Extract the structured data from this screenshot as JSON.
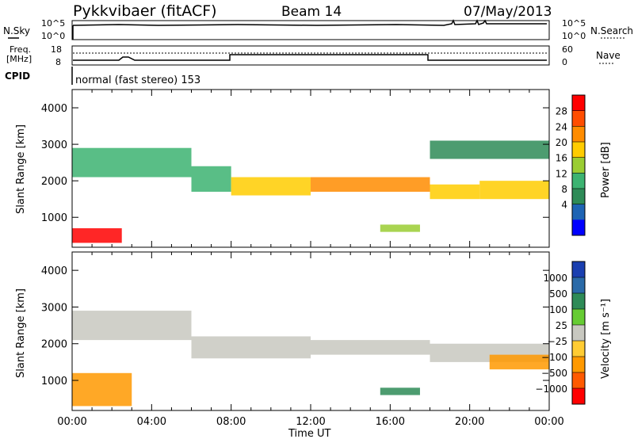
{
  "header": {
    "radar": "Pykkvibaer (fitACF)",
    "beam": "Beam 14",
    "date": "07/May/2013"
  },
  "strips": {
    "nsky_label": "N.Sky",
    "nsky_ticks": [
      "10^5",
      "10^0"
    ],
    "nsearch_label": "N.Search",
    "nsearch_ticks": [
      "10^5",
      "10^0"
    ],
    "freq_label_line1": "Freq.",
    "freq_label_line2": "[MHz]",
    "freq_ticks": [
      "18",
      "8"
    ],
    "nave_label": "Nave",
    "nave_ticks": [
      "60",
      "0"
    ],
    "cpid_label": "CPID",
    "cpid_text": "normal (fast stereo) 153"
  },
  "power_panel": {
    "ylabel": "Slant Range [km]",
    "yticks": [
      "4000",
      "3000",
      "2000",
      "1000"
    ],
    "colorbar_label": "Power [dB]",
    "colorbar_ticks": [
      "28",
      "24",
      "20",
      "16",
      "12",
      "8",
      "4"
    ],
    "colorbar_colors": [
      "#ff0000",
      "#ff4d00",
      "#ff8c00",
      "#ffcc00",
      "#9acd32",
      "#3cb371",
      "#2e8b57",
      "#1e64b4",
      "#0000ff"
    ]
  },
  "velocity_panel": {
    "ylabel": "Slant Range [km]",
    "yticks": [
      "4000",
      "3000",
      "2000",
      "1000"
    ],
    "colorbar_label": "Velocity [m s⁻¹]",
    "colorbar_ticks": [
      "1000",
      "500",
      "100",
      "25",
      "−25",
      "−100",
      "−500",
      "−1000"
    ],
    "colorbar_colors": [
      "#1a3fb0",
      "#2a6aa8",
      "#2e8b57",
      "#66cc33",
      "#c8c8c0",
      "#ffcc33",
      "#ff9900",
      "#ff5a00",
      "#ff0000"
    ]
  },
  "xaxis": {
    "label": "Time UT",
    "ticks": [
      "00:00",
      "04:00",
      "08:00",
      "12:00",
      "16:00",
      "20:00",
      "00:00"
    ]
  },
  "chart_data": {
    "type": "heatmap",
    "title": "Pykkvibaer (fitACF)",
    "subtitle": "Beam 14",
    "date": "07/May/2013",
    "xlabel": "Time UT",
    "ylabel": "Slant Range [km]",
    "x_range_hours": [
      0,
      24
    ],
    "y_range_km": [
      180,
      4500
    ],
    "frequency_MHz": {
      "y_range": [
        8,
        18
      ],
      "values": [
        [
          0,
          10
        ],
        [
          2.4,
          10.5
        ],
        [
          3.0,
          10
        ],
        [
          24,
          10
        ]
      ]
    },
    "nave": {
      "y_range": [
        0,
        60
      ],
      "values": [
        [
          0,
          20
        ],
        [
          7.8,
          20
        ],
        [
          7.8,
          35
        ],
        [
          18,
          35
        ],
        [
          18,
          20
        ],
        [
          24,
          20
        ]
      ]
    },
    "nsky": {
      "values": [
        [
          0,
          5
        ],
        [
          3,
          5
        ],
        [
          10,
          5
        ],
        [
          19,
          5
        ],
        [
          21,
          5
        ],
        [
          24,
          5
        ]
      ]
    },
    "power_dB": {
      "scale": [
        4,
        28
      ],
      "regions": [
        {
          "t0": 0.0,
          "t1": 6.0,
          "r0": 2100,
          "r1": 2900,
          "value": 14
        },
        {
          "t0": 6.0,
          "t1": 8.0,
          "r0": 1700,
          "r1": 2400,
          "value": 12
        },
        {
          "t0": 8.0,
          "t1": 12.0,
          "r0": 1600,
          "r1": 2100,
          "value": 18
        },
        {
          "t0": 12.0,
          "t1": 18.0,
          "r0": 1700,
          "r1": 2100,
          "value": 22
        },
        {
          "t0": 18.0,
          "t1": 20.5,
          "r0": 1500,
          "r1": 1900,
          "value": 20
        },
        {
          "t0": 20.5,
          "t1": 24.0,
          "r0": 1500,
          "r1": 2000,
          "value": 18
        },
        {
          "t0": 0.0,
          "t1": 2.5,
          "r0": 300,
          "r1": 700,
          "value": 28
        },
        {
          "t0": 15.5,
          "t1": 17.5,
          "r0": 600,
          "r1": 800,
          "value": 16
        },
        {
          "t0": 18.0,
          "t1": 24.0,
          "r0": 2600,
          "r1": 3100,
          "value": 10
        }
      ]
    },
    "velocity_ms": {
      "scale": [
        -1000,
        1000
      ],
      "regions": [
        {
          "t0": 0.0,
          "t1": 6.0,
          "r0": 2100,
          "r1": 2900,
          "value": 0
        },
        {
          "t0": 6.0,
          "t1": 12.0,
          "r0": 1600,
          "r1": 2200,
          "value": 0
        },
        {
          "t0": 12.0,
          "t1": 18.0,
          "r0": 1700,
          "r1": 2100,
          "value": 0
        },
        {
          "t0": 18.0,
          "t1": 24.0,
          "r0": 1500,
          "r1": 2000,
          "value": 0
        },
        {
          "t0": 0.0,
          "t1": 3.0,
          "r0": 300,
          "r1": 1200,
          "value": -300
        },
        {
          "t0": 15.5,
          "t1": 17.5,
          "r0": 600,
          "r1": 800,
          "value": 300
        },
        {
          "t0": 21.0,
          "t1": 24.0,
          "r0": 1300,
          "r1": 1700,
          "value": -200
        }
      ]
    }
  }
}
